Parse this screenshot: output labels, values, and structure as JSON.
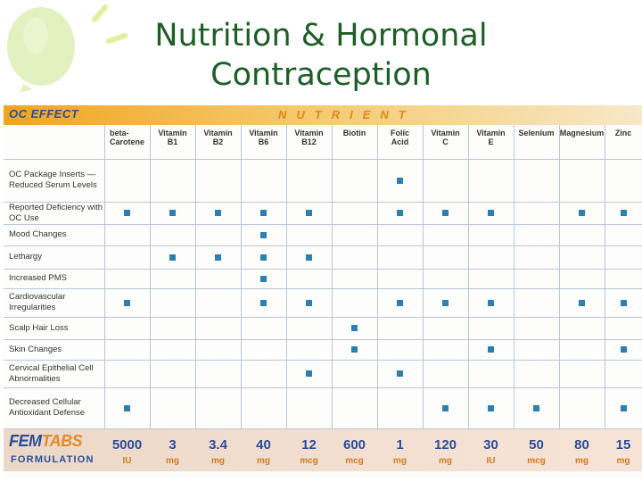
{
  "title": {
    "line1": "Nutrition & Hormonal",
    "line2": "Contraception"
  },
  "colors": {
    "title": "#1d5e27",
    "band": "#f1a51f",
    "marker": "#2d7fb3",
    "brand_blue": "#2b4d9a",
    "brand_orange": "#e28b2a"
  },
  "table": {
    "oc_effect_label": "OC EFFECT",
    "nutrient_label": "NUTRIENT",
    "nutrients": [
      {
        "l1": "beta-",
        "l2": "Carotene"
      },
      {
        "l1": "Vitamin",
        "l2": "B1"
      },
      {
        "l1": "Vitamin",
        "l2": "B2"
      },
      {
        "l1": "Vitamin",
        "l2": "B6"
      },
      {
        "l1": "Vitamin",
        "l2": "B12"
      },
      {
        "l1": "Biotin",
        "l2": ""
      },
      {
        "l1": "Folic",
        "l2": "Acid"
      },
      {
        "l1": "Vitamin",
        "l2": "C"
      },
      {
        "l1": "Vitamin",
        "l2": "E"
      },
      {
        "l1": "Selenium",
        "l2": ""
      },
      {
        "l1": "Magnesium",
        "l2": ""
      },
      {
        "l1": "Zinc",
        "l2": ""
      }
    ],
    "effects": [
      {
        "label": "OC Package Inserts — Reduced Serum Levels",
        "marks": [
          6
        ]
      },
      {
        "label": "Reported Deficiency with OC Use",
        "marks": [
          0,
          1,
          2,
          3,
          4,
          6,
          7,
          8,
          10,
          11
        ]
      },
      {
        "label": "Mood Changes",
        "marks": [
          3
        ]
      },
      {
        "label": "Lethargy",
        "marks": [
          1,
          2,
          3,
          4
        ]
      },
      {
        "label": "Increased PMS",
        "marks": [
          3
        ]
      },
      {
        "label": "Cardiovascular Irregularities",
        "marks": [
          0,
          3,
          4,
          6,
          7,
          8,
          10,
          11
        ]
      },
      {
        "label": "Scalp Hair Loss",
        "marks": [
          5
        ]
      },
      {
        "label": "Skin Changes",
        "marks": [
          5,
          8,
          11
        ]
      },
      {
        "label": "Cervical Epithelial Cell Abnormalities",
        "marks": [
          4,
          6
        ]
      },
      {
        "label": "Decreased Cellular Antioxidant Defense",
        "marks": [
          0,
          7,
          8,
          9,
          11
        ]
      }
    ],
    "footer": {
      "brand_fem": "FEM",
      "brand_tabs": "TABS",
      "formulation": "FORMULATION",
      "amounts": [
        {
          "value": "5000",
          "unit": "IU"
        },
        {
          "value": "3",
          "unit": "mg"
        },
        {
          "value": "3.4",
          "unit": "mg"
        },
        {
          "value": "40",
          "unit": "mg"
        },
        {
          "value": "12",
          "unit": "mcg"
        },
        {
          "value": "600",
          "unit": "mcg"
        },
        {
          "value": "1",
          "unit": "mg"
        },
        {
          "value": "120",
          "unit": "mg"
        },
        {
          "value": "30",
          "unit": "IU"
        },
        {
          "value": "50",
          "unit": "mcg"
        },
        {
          "value": "80",
          "unit": "mg"
        },
        {
          "value": "15",
          "unit": "mg"
        }
      ]
    }
  }
}
